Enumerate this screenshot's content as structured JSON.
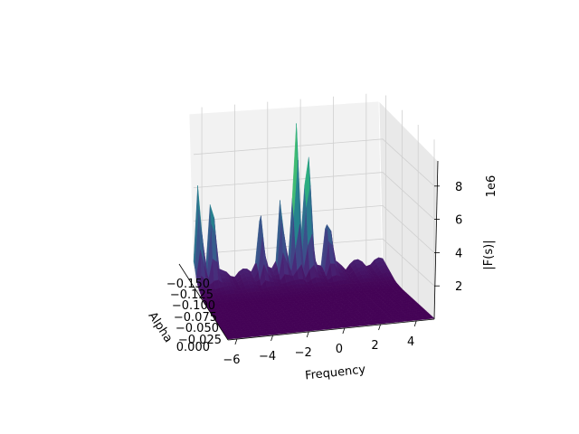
{
  "chart_data": {
    "type": "surface3d",
    "xlabel": "Frequency",
    "ylabel": "Alpha",
    "zlabel": "|F(s)|",
    "z_offset_label": "1e6",
    "x_ticks": [
      "−6",
      "−4",
      "−2",
      "0",
      "2",
      "4"
    ],
    "y_ticks": [
      "−0.150",
      "−0.125",
      "−0.100",
      "−0.075",
      "−0.050",
      "−0.025",
      "0.000"
    ],
    "z_ticks": [
      "2",
      "4",
      "6",
      "8"
    ],
    "xlim": [
      -6.5,
      5
    ],
    "ylim": [
      -0.16,
      0
    ],
    "zlim": [
      0,
      9.5
    ],
    "z_scale": 1000000,
    "colormap": "viridis",
    "peaks": [
      {
        "frequency": -0.3,
        "alpha": -0.16,
        "value": 9.2
      },
      {
        "frequency": 0.4,
        "alpha": -0.16,
        "value": 7.9
      },
      {
        "frequency": -6.2,
        "alpha": -0.16,
        "value": 5.5
      },
      {
        "frequency": -5.4,
        "alpha": -0.16,
        "value": 5.6
      },
      {
        "frequency": -1.2,
        "alpha": -0.16,
        "value": 4.6
      },
      {
        "frequency": -2.5,
        "alpha": -0.155,
        "value": 3.6
      },
      {
        "frequency": 1.6,
        "alpha": -0.155,
        "value": 3.5
      }
    ],
    "grid": true
  }
}
